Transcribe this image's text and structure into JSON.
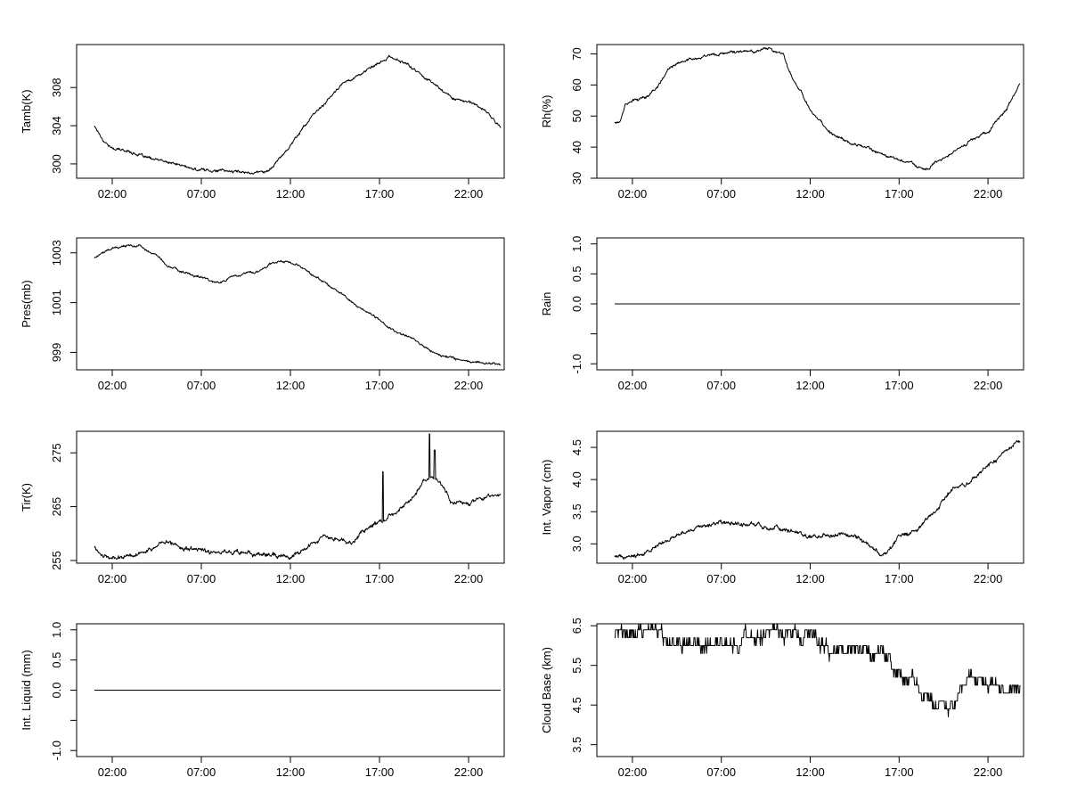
{
  "chart_data": [
    {
      "id": "tamb",
      "type": "line",
      "ylabel": "Tamb(K)",
      "xlim": [
        0,
        24
      ],
      "ylim": [
        298.5,
        312.5
      ],
      "xticks": [
        2,
        7,
        12,
        17,
        22
      ],
      "xtick_labels": [
        "02:00",
        "07:00",
        "12:00",
        "17:00",
        "22:00"
      ],
      "yticks": [
        300,
        304,
        308
      ],
      "noise": 0.15,
      "x": [
        1,
        1.5,
        2,
        3,
        4,
        5,
        6,
        6.5,
        7,
        8,
        9,
        10,
        10.8,
        11.5,
        12,
        13,
        14,
        15,
        16,
        17,
        17.5,
        18,
        18.5,
        19,
        20,
        21,
        22,
        23,
        23.8
      ],
      "y": [
        304,
        302.5,
        301.6,
        301.3,
        300.6,
        300.2,
        299.8,
        299.4,
        299.4,
        299.3,
        299.2,
        299.1,
        299.3,
        300.8,
        302,
        304.5,
        306.5,
        308.5,
        309.5,
        310.5,
        311.2,
        310.9,
        310.5,
        309.8,
        308.5,
        307,
        306.5,
        305.5,
        303.8
      ]
    },
    {
      "id": "rh",
      "type": "line",
      "ylabel": "Rh(%)",
      "xlim": [
        0,
        24
      ],
      "ylim": [
        30,
        73
      ],
      "xticks": [
        2,
        7,
        12,
        17,
        22
      ],
      "xtick_labels": [
        "02:00",
        "07:00",
        "12:00",
        "17:00",
        "22:00"
      ],
      "yticks": [
        30,
        40,
        50,
        60,
        70
      ],
      "noise": 0.5,
      "x": [
        1,
        1.3,
        1.6,
        2,
        2.5,
        3,
        3.5,
        4,
        5,
        6,
        7,
        8,
        9,
        9.5,
        10,
        10.5,
        11,
        11.5,
        12,
        13,
        14,
        15,
        16,
        17,
        18,
        18.7,
        19,
        20,
        21,
        22,
        23,
        23.8
      ],
      "y": [
        48,
        48,
        54,
        55,
        55.5,
        57,
        60,
        65,
        68,
        69.5,
        70,
        70.5,
        71,
        72,
        71,
        70,
        62,
        58,
        52,
        45,
        42,
        40,
        38,
        36,
        34,
        33,
        35,
        38,
        42,
        45,
        52,
        60
      ]
    },
    {
      "id": "pres",
      "type": "line",
      "ylabel": "Pres(mb)",
      "xlim": [
        0,
        24
      ],
      "ylim": [
        998.3,
        1003.6
      ],
      "xticks": [
        2,
        7,
        12,
        17,
        22
      ],
      "xtick_labels": [
        "02:00",
        "07:00",
        "12:00",
        "17:00",
        "22:00"
      ],
      "yticks": [
        999,
        1001,
        1003
      ],
      "noise": 0.05,
      "x": [
        1,
        2,
        3,
        3.8,
        4.5,
        5,
        6,
        7,
        8,
        9,
        10,
        11,
        11.8,
        12.5,
        13,
        14,
        15,
        16,
        17,
        18,
        19,
        20,
        21,
        22,
        23,
        23.8
      ],
      "y": [
        1002.8,
        1003.2,
        1003.3,
        1003.2,
        1002.9,
        1002.5,
        1002.2,
        1002,
        1001.8,
        1002.1,
        1002.2,
        1002.6,
        1002.7,
        1002.5,
        1002.2,
        1001.8,
        1001.3,
        1000.7,
        1000.3,
        999.8,
        999.5,
        999,
        998.8,
        998.6,
        998.6,
        998.5
      ]
    },
    {
      "id": "rain",
      "type": "line",
      "ylabel": "Rain",
      "xlim": [
        0,
        24
      ],
      "ylim": [
        -1.1,
        1.1
      ],
      "xticks": [
        2,
        7,
        12,
        17,
        22
      ],
      "xtick_labels": [
        "02:00",
        "07:00",
        "12:00",
        "17:00",
        "22:00"
      ],
      "yticks": [
        -1.0,
        -0.5,
        0.0,
        0.5,
        1.0
      ],
      "ytick_labels": [
        "-1.0",
        "",
        "0.0",
        "0.5",
        "1.0"
      ],
      "noise": 0,
      "x": [
        1,
        23.8
      ],
      "y": [
        0,
        0
      ]
    },
    {
      "id": "tir",
      "type": "line",
      "ylabel": "Tir(K)",
      "xlim": [
        0,
        24
      ],
      "ylim": [
        254.5,
        279
      ],
      "xticks": [
        2,
        7,
        12,
        17,
        22
      ],
      "xtick_labels": [
        "02:00",
        "07:00",
        "12:00",
        "17:00",
        "22:00"
      ],
      "yticks": [
        255,
        265,
        275
      ],
      "noise": 0.45,
      "spikes": [
        [
          17.2,
          271.5
        ],
        [
          19.8,
          278.5
        ],
        [
          20.1,
          275.5
        ]
      ],
      "x": [
        1,
        1.5,
        2,
        3,
        4,
        5,
        6,
        7,
        8,
        9,
        10,
        11,
        12,
        12.5,
        13,
        14,
        15,
        15.5,
        16,
        17,
        17.5,
        18,
        19,
        19.5,
        20,
        20.5,
        21,
        22,
        23,
        23.8
      ],
      "y": [
        257.5,
        256,
        255.5,
        256,
        257,
        258.5,
        257.5,
        257,
        256.5,
        256.5,
        256,
        256,
        255.5,
        256.5,
        257.5,
        259.5,
        259,
        258.5,
        260,
        262,
        263.5,
        264,
        267,
        270,
        270.5,
        269,
        266,
        265.5,
        267,
        267
      ]
    },
    {
      "id": "vapor",
      "type": "line",
      "ylabel": "Int. Vapor (cm)",
      "xlim": [
        0,
        24
      ],
      "ylim": [
        2.7,
        4.75
      ],
      "xticks": [
        2,
        7,
        12,
        17,
        22
      ],
      "xtick_labels": [
        "02:00",
        "07:00",
        "12:00",
        "17:00",
        "22:00"
      ],
      "yticks": [
        3.0,
        3.5,
        4.0,
        4.5
      ],
      "ytick_labels": [
        "3.0",
        "3.5",
        "4.0",
        "4.5"
      ],
      "noise": 0.035,
      "x": [
        1,
        2,
        3,
        4,
        5,
        6,
        7,
        8,
        9,
        10,
        11,
        12,
        13,
        14,
        15,
        16,
        16.5,
        17,
        18,
        19,
        20,
        21,
        22,
        23,
        23.8
      ],
      "y": [
        2.8,
        2.8,
        2.9,
        3.05,
        3.2,
        3.3,
        3.35,
        3.3,
        3.3,
        3.25,
        3.2,
        3.1,
        3.15,
        3.15,
        3.05,
        2.85,
        2.9,
        3.1,
        3.2,
        3.5,
        3.85,
        3.95,
        4.2,
        4.45,
        4.6
      ]
    },
    {
      "id": "liquid",
      "type": "line",
      "ylabel": "Int. Liquid (mm)",
      "xlim": [
        0,
        24
      ],
      "ylim": [
        -1.1,
        1.1
      ],
      "xticks": [
        2,
        7,
        12,
        17,
        22
      ],
      "xtick_labels": [
        "02:00",
        "07:00",
        "12:00",
        "17:00",
        "22:00"
      ],
      "yticks": [
        -1.0,
        -0.5,
        0.0,
        0.5,
        1.0
      ],
      "ytick_labels": [
        "-1.0",
        "",
        "0.0",
        "0.5",
        "1.0"
      ],
      "noise": 0,
      "x": [
        1,
        23.8
      ],
      "y": [
        0,
        0
      ]
    },
    {
      "id": "cloudbase",
      "type": "line",
      "ylabel": "Cloud Base (km)",
      "xlim": [
        0,
        24
      ],
      "ylim": [
        3.2,
        6.55
      ],
      "xticks": [
        2,
        7,
        12,
        17,
        22
      ],
      "xtick_labels": [
        "02:00",
        "07:00",
        "12:00",
        "17:00",
        "22:00"
      ],
      "yticks": [
        3.5,
        4.5,
        5.5,
        6.5
      ],
      "ytick_labels": [
        "3.5",
        "4.5",
        "5.5",
        "6.5"
      ],
      "step": 0.2,
      "noise": 0.2,
      "x": [
        1,
        2,
        3,
        4,
        5,
        6,
        7,
        8,
        9,
        10,
        11,
        12,
        13,
        14,
        15,
        16,
        16.5,
        17,
        18,
        18.5,
        19,
        19.5,
        20,
        20.5,
        21,
        22,
        23,
        23.8
      ],
      "y": [
        6.2,
        6.3,
        6.3,
        6.2,
        6.1,
        6.1,
        6.1,
        6.1,
        6.3,
        6.4,
        6.4,
        6.2,
        5.9,
        5.9,
        5.9,
        5.9,
        5.6,
        5.2,
        5.0,
        4.7,
        4.4,
        4.3,
        4.6,
        5.0,
        5.2,
        5.0,
        5.0,
        5.0
      ]
    }
  ]
}
